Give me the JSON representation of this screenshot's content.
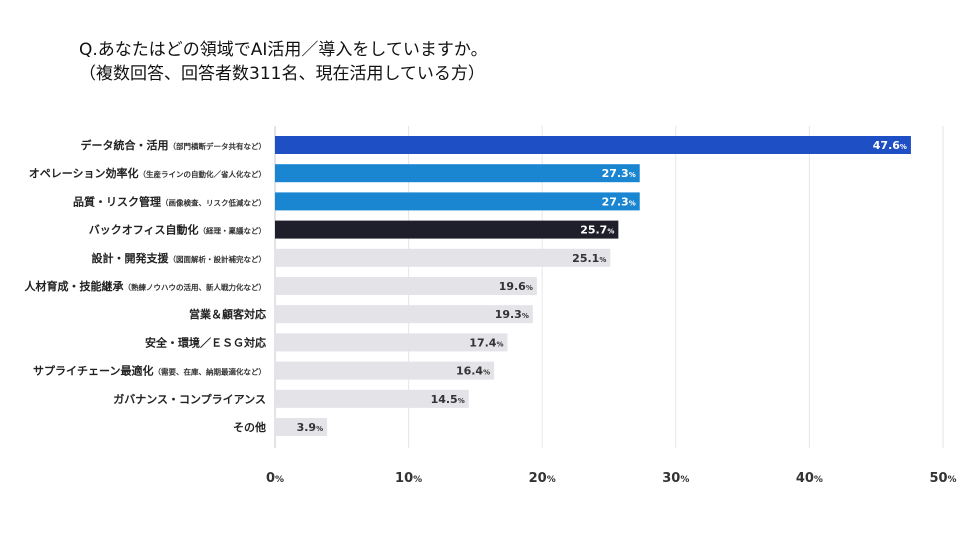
{
  "question": {
    "line1": "Q.あなたはどの領域でAI活用／導入をしていますか。",
    "line2": "（複数回答、回答者数311名、現在活用している方）"
  },
  "chart_data": {
    "type": "bar",
    "orientation": "horizontal",
    "categories": [
      {
        "main": "データ統合・活用",
        "sub": "（部門横断データ共有など）"
      },
      {
        "main": "オペレーション効率化",
        "sub": "（生産ラインの自動化／省人化など）"
      },
      {
        "main": "品質・リスク管理",
        "sub": "（画像検査、リスク低減など）"
      },
      {
        "main": "バックオフィス自動化",
        "sub": "（経理・稟議など）"
      },
      {
        "main": "設計・開発支援",
        "sub": "（図面解析・設計補完など）"
      },
      {
        "main": "人材育成・技能継承",
        "sub": "（熟練ノウハウの活用、新人戦力化など）"
      },
      {
        "main": "営業＆顧客対応",
        "sub": ""
      },
      {
        "main": "安全・環境／ＥＳＧ対応",
        "sub": ""
      },
      {
        "main": "サプライチェーン最適化",
        "sub": "（需要、在庫、納期最適化など）"
      },
      {
        "main": "ガバナンス・コンプライアンス",
        "sub": ""
      },
      {
        "main": "その他",
        "sub": ""
      }
    ],
    "values": [
      47.6,
      27.3,
      27.3,
      25.7,
      25.1,
      19.6,
      19.3,
      17.4,
      16.4,
      14.5,
      3.9
    ],
    "unit": "%",
    "bar_colors": [
      "#1f4fc4",
      "#1a86d2",
      "#1a86d2",
      "#1e1f2b",
      "#e3e3e8",
      "#e3e3e8",
      "#e3e3e8",
      "#e3e3e8",
      "#e3e3e8",
      "#e3e3e8",
      "#e3e3e8"
    ],
    "label_colors": [
      "#ffffff",
      "#ffffff",
      "#ffffff",
      "#ffffff",
      "#333333",
      "#333333",
      "#333333",
      "#333333",
      "#333333",
      "#333333",
      "#333333"
    ],
    "xlim": [
      0,
      50
    ],
    "xticks": [
      0,
      10,
      20,
      30,
      40,
      50
    ],
    "grid": true
  }
}
